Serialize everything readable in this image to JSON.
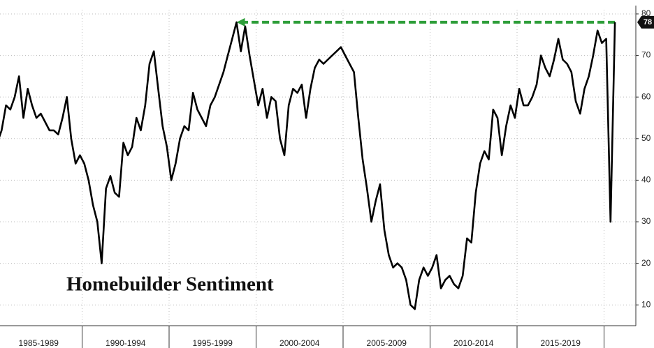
{
  "chart_data": {
    "type": "line",
    "title": "Homebuilder Sentiment",
    "categories": [
      "1985-1989",
      "1990-1994",
      "1995-1999",
      "2000-2004",
      "2005-2009",
      "2010-2014",
      "2015-2019",
      null
    ],
    "values": [
      [
        49,
        52,
        58,
        57,
        60,
        65,
        55,
        62,
        58,
        55,
        56,
        54,
        52,
        52,
        51,
        55,
        60,
        50,
        44,
        46
      ],
      [
        44,
        40,
        34,
        30,
        20,
        38,
        41,
        37,
        36,
        49,
        46,
        48,
        55,
        52,
        58,
        68,
        71,
        62,
        53,
        48
      ],
      [
        40,
        44,
        50,
        53,
        52,
        61,
        57,
        55,
        53,
        58,
        60,
        63,
        66,
        70,
        74,
        78,
        71,
        77,
        70,
        64
      ],
      [
        58,
        62,
        55,
        60,
        59,
        50,
        46,
        58,
        62,
        61,
        63,
        55,
        62,
        67,
        69,
        68,
        69,
        70,
        71,
        72
      ],
      [
        70,
        68,
        66,
        55,
        45,
        38,
        30,
        35,
        39,
        28,
        22,
        19,
        20,
        19,
        16,
        10,
        9,
        16,
        19,
        17
      ],
      [
        19,
        22,
        14,
        16,
        17,
        15,
        14,
        17,
        26,
        25,
        37,
        44,
        47,
        45,
        57,
        55,
        46,
        53,
        58,
        55
      ],
      [
        62,
        58,
        58,
        60,
        63,
        70,
        67,
        65,
        69,
        74,
        69,
        68,
        66,
        59,
        56,
        62,
        65,
        70,
        76,
        73
      ],
      [
        74,
        30,
        78
      ]
    ],
    "color": "#000000",
    "arrow_color": "#2e9e3a",
    "ylim": [
      5,
      81
    ],
    "yticks": [
      10,
      20,
      30,
      40,
      50,
      60,
      70,
      80
    ],
    "grid": true
  }
}
